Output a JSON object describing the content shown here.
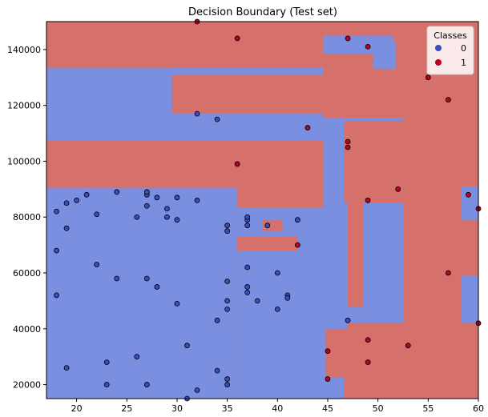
{
  "chart_data": {
    "type": "scatter",
    "title": "Decision Boundary (Test set)",
    "xlabel": "",
    "ylabel": "",
    "xlim": [
      17,
      60
    ],
    "ylim": [
      15000,
      150000
    ],
    "xticks": [
      20,
      25,
      30,
      35,
      40,
      45,
      50,
      55,
      60
    ],
    "yticks": [
      20000,
      40000,
      60000,
      80000,
      100000,
      120000,
      140000
    ],
    "background_color": "#d6706a",
    "legend": {
      "title": "Classes",
      "placement": "top-right",
      "entries": [
        {
          "label": "0",
          "color": "#3b4cc0"
        },
        {
          "label": "1",
          "color": "#b40426"
        }
      ]
    },
    "regions": [
      {
        "class": 0,
        "color": "#7b8fe0",
        "x": [
          17,
          44.6
        ],
        "y": [
          107500,
          133500
        ]
      },
      {
        "class": 0,
        "color": "#7b8fe0",
        "x": [
          29.5,
          44.6
        ],
        "y": [
          117000,
          133500
        ]
      },
      {
        "class": 1,
        "color": "#d6706a",
        "x": [
          29.5,
          44.6
        ],
        "y": [
          117000,
          131000
        ]
      },
      {
        "class": 0,
        "color": "#7b8fe0",
        "x": [
          33.8,
          40.5
        ],
        "y": [
          107500,
          112500
        ]
      },
      {
        "class": 0,
        "color": "#7b8fe0",
        "x": [
          17,
          36
        ],
        "y": [
          15000,
          90500
        ]
      },
      {
        "class": 0,
        "color": "#7b8fe0",
        "x": [
          36,
          44.8
        ],
        "y": [
          15000,
          83500
        ]
      },
      {
        "class": 1,
        "color": "#d6706a",
        "x": [
          36,
          42
        ],
        "y": [
          68000,
          73000
        ]
      },
      {
        "class": 0,
        "color": "#7b8fe0",
        "x": [
          36,
          40
        ],
        "y": [
          73000,
          80000
        ]
      },
      {
        "class": 1,
        "color": "#d6706a",
        "x": [
          38.5,
          40.5
        ],
        "y": [
          75000,
          79000
        ]
      },
      {
        "class": 0,
        "color": "#7b8fe0",
        "x": [
          44.6,
          46.6
        ],
        "y": [
          15000,
          22500
        ]
      },
      {
        "class": 0,
        "color": "#7b8fe0",
        "x": [
          44.6,
          46.6
        ],
        "y": [
          85000,
          115500
        ]
      },
      {
        "class": 0,
        "color": "#7b8fe0",
        "x": [
          44.6,
          51.5
        ],
        "y": [
          138500,
          145000
        ]
      },
      {
        "class": 0,
        "color": "#7b8fe0",
        "x": [
          49.5,
          51.8
        ],
        "y": [
          133000,
          143000
        ]
      },
      {
        "class": 0,
        "color": "#7b8fe0",
        "x": [
          46.5,
          52.5
        ],
        "y": [
          114500,
          115500
        ]
      },
      {
        "class": 0,
        "color": "#7b8fe0",
        "x": [
          44.6,
          47
        ],
        "y": [
          40000,
          85000
        ]
      },
      {
        "class": 0,
        "color": "#7b8fe0",
        "x": [
          47,
          48.5
        ],
        "y": [
          42000,
          48000
        ]
      },
      {
        "class": 0,
        "color": "#7b8fe0",
        "x": [
          48.5,
          52.5
        ],
        "y": [
          42000,
          85000
        ]
      },
      {
        "class": 0,
        "color": "#7b8fe0",
        "x": [
          58.3,
          60
        ],
        "y": [
          42000,
          59000
        ]
      },
      {
        "class": 0,
        "color": "#7b8fe0",
        "x": [
          58.3,
          60
        ],
        "y": [
          79000,
          91000
        ]
      }
    ],
    "series": [
      {
        "name": "0",
        "color": "#3b4cc0",
        "points": [
          [
            18,
            82000
          ],
          [
            19,
            85000
          ],
          [
            20,
            86000
          ],
          [
            21,
            88000
          ],
          [
            19,
            76000
          ],
          [
            22,
            81000
          ],
          [
            18,
            68000
          ],
          [
            22,
            63000
          ],
          [
            24,
            58000
          ],
          [
            18,
            52000
          ],
          [
            19,
            26000
          ],
          [
            23,
            28000
          ],
          [
            23,
            20000
          ],
          [
            24,
            89000
          ],
          [
            26,
            80000
          ],
          [
            27,
            84000
          ],
          [
            27,
            88000
          ],
          [
            27,
            89000
          ],
          [
            28,
            87000
          ],
          [
            29,
            83000
          ],
          [
            29,
            80000
          ],
          [
            30,
            79000
          ],
          [
            30,
            87000
          ],
          [
            32,
            86000
          ],
          [
            27,
            58000
          ],
          [
            28,
            55000
          ],
          [
            30,
            49000
          ],
          [
            26,
            30000
          ],
          [
            27,
            20000
          ],
          [
            31,
            34000
          ],
          [
            31,
            15000
          ],
          [
            32,
            18000
          ],
          [
            35,
            20000
          ],
          [
            35,
            22000
          ],
          [
            34,
            25000
          ],
          [
            34,
            43000
          ],
          [
            35,
            47000
          ],
          [
            35,
            50000
          ],
          [
            35,
            57000
          ],
          [
            35,
            75000
          ],
          [
            35,
            77000
          ],
          [
            37,
            77000
          ],
          [
            37,
            79000
          ],
          [
            37,
            80000
          ],
          [
            37,
            62000
          ],
          [
            37,
            55000
          ],
          [
            37,
            53000
          ],
          [
            38,
            50000
          ],
          [
            40,
            47000
          ],
          [
            40,
            60000
          ],
          [
            41,
            52000
          ],
          [
            41,
            51000
          ],
          [
            39,
            77000
          ],
          [
            42,
            79000
          ],
          [
            32,
            117000
          ],
          [
            34,
            115000
          ],
          [
            47,
            43000
          ]
        ]
      },
      {
        "name": "1",
        "color": "#b40426",
        "points": [
          [
            32,
            150000
          ],
          [
            36,
            144000
          ],
          [
            47,
            144000
          ],
          [
            49,
            141000
          ],
          [
            55,
            130000
          ],
          [
            57,
            122000
          ],
          [
            43,
            112000
          ],
          [
            47,
            107000
          ],
          [
            47,
            105000
          ],
          [
            36,
            99000
          ],
          [
            52,
            90000
          ],
          [
            49,
            86000
          ],
          [
            59,
            88000
          ],
          [
            60,
            83000
          ],
          [
            42,
            70000
          ],
          [
            57,
            60000
          ],
          [
            60,
            42000
          ],
          [
            49,
            36000
          ],
          [
            53,
            34000
          ],
          [
            45,
            32000
          ],
          [
            49,
            28000
          ],
          [
            45,
            22000
          ]
        ]
      }
    ]
  }
}
